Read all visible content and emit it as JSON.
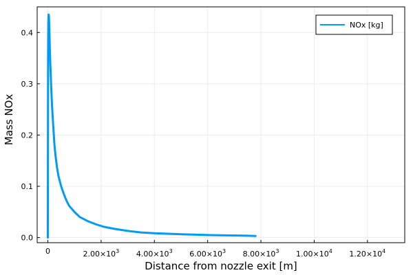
{
  "chart_data": {
    "type": "line",
    "xlabel": "Distance from nozzle exit [m]",
    "ylabel": "Mass NOx",
    "xlim": [
      -400,
      13400
    ],
    "ylim": [
      -0.01,
      0.45
    ],
    "grid": true,
    "legend_position": "top-right",
    "x_ticks": [
      {
        "value": 0,
        "mantissa": "0",
        "exponent": ""
      },
      {
        "value": 2000,
        "mantissa": "2.00×10",
        "exponent": "3"
      },
      {
        "value": 4000,
        "mantissa": "4.00×10",
        "exponent": "3"
      },
      {
        "value": 6000,
        "mantissa": "6.00×10",
        "exponent": "3"
      },
      {
        "value": 8000,
        "mantissa": "8.00×10",
        "exponent": "3"
      },
      {
        "value": 10000,
        "mantissa": "1.00×10",
        "exponent": "4"
      },
      {
        "value": 12000,
        "mantissa": "1.20×10",
        "exponent": "4"
      }
    ],
    "y_ticks": [
      {
        "value": 0.0,
        "label": "0.0"
      },
      {
        "value": 0.1,
        "label": "0.1"
      },
      {
        "value": 0.2,
        "label": "0.2"
      },
      {
        "value": 0.3,
        "label": "0.3"
      },
      {
        "value": 0.4,
        "label": "0.4"
      }
    ],
    "series": [
      {
        "name": "NOx [kg]",
        "color": "#009af9",
        "x": [
          0,
          5,
          10,
          20,
          30,
          40,
          50,
          60,
          80,
          100,
          130,
          160,
          200,
          250,
          300,
          350,
          400,
          500,
          600,
          700,
          800,
          1000,
          1200,
          1500,
          1800,
          2100,
          2500,
          3000,
          3500,
          4000,
          4500,
          5000,
          5500,
          6000,
          6500,
          7000,
          7500,
          7800
        ],
        "values": [
          0.0,
          0.2,
          0.36,
          0.425,
          0.435,
          0.432,
          0.42,
          0.4,
          0.36,
          0.33,
          0.29,
          0.255,
          0.22,
          0.18,
          0.155,
          0.135,
          0.12,
          0.1,
          0.085,
          0.072,
          0.062,
          0.05,
          0.04,
          0.032,
          0.026,
          0.021,
          0.017,
          0.013,
          0.01,
          0.0085,
          0.0075,
          0.0065,
          0.0058,
          0.005,
          0.0045,
          0.004,
          0.0035,
          0.003
        ]
      }
    ]
  }
}
